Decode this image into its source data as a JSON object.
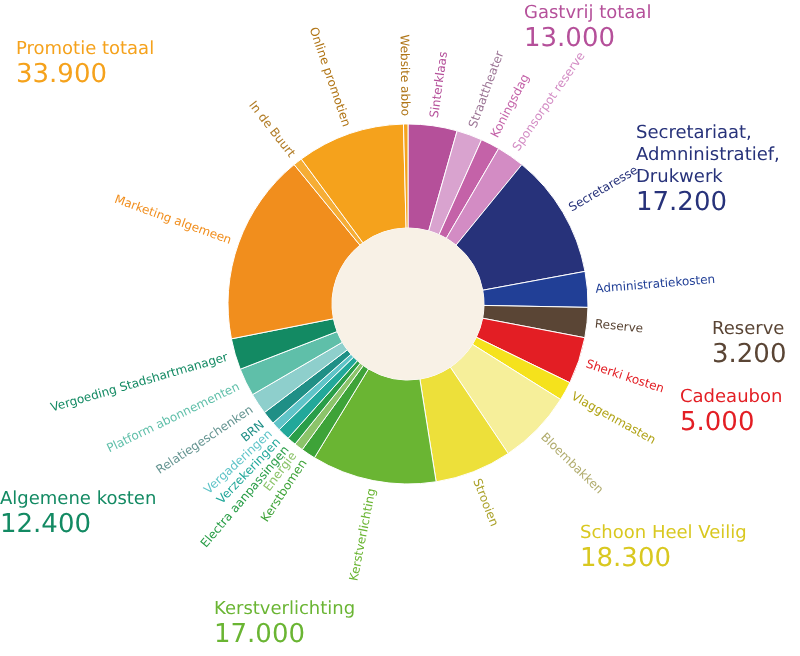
{
  "chart_data": {
    "type": "donut",
    "categories": [
      "Sinterklaas",
      "Straattheater",
      "Koningsdag",
      "Sponsorpot reserve",
      "Secretaresse",
      "Administratiekosten",
      "Reserve",
      "Sherki kosten",
      "Vlaggenmasten",
      "Bloembakken",
      "Strooien",
      "Kerstverlichting",
      "Kerstbomen",
      "Energie",
      "Electra aanpassingen",
      "Verzekeringen",
      "Vergaderingen",
      "BRN",
      "Relatiegeschenken",
      "Platform abonnementen",
      "Vergoeding Stadshartmanager",
      "Marketing algemeen",
      "In de Buurt",
      "Online promotien",
      "Website abbo"
    ],
    "values": [
      4.4,
      2.3,
      1.7,
      2.5,
      11.2,
      3.2,
      2.7,
      4.2,
      1.7,
      6.7,
      6.9,
      11.2,
      1.3,
      0.8,
      0.8,
      1.1,
      0.8,
      1.2,
      1.9,
      2.5,
      2.8,
      17.2,
      0.8,
      9.7,
      0.4
    ],
    "colors": [
      "#b5509a",
      "#d9a3cf",
      "#c462a8",
      "#d38cc4",
      "#27327a",
      "#213f96",
      "#5a4535",
      "#e31e24",
      "#f5e21c",
      "#f6ef9a",
      "#ede03a",
      "#6ab533",
      "#3ea338",
      "#8cc46a",
      "#2a9e48",
      "#22a89a",
      "#5fc4c8",
      "#1f8f86",
      "#8ecfcc",
      "#5fbfa9",
      "#138a63",
      "#f18e1d",
      "#f6ad35",
      "#f5a21c",
      "#f4a320"
    ],
    "annotations": [
      "Promotie totaal\n33.900",
      "Gastvrij totaal\n13.000",
      "Secretariaat,\nAdmninistratief,\nDrukwerk\n17.200",
      "Reserve\n3.200",
      "Cadeaubon\n5.000",
      "Schoon Heel Veilig\n18.300",
      "Kerstverlichting\n17.000",
      "Algemene kosten\n12.400"
    ]
  }
}
